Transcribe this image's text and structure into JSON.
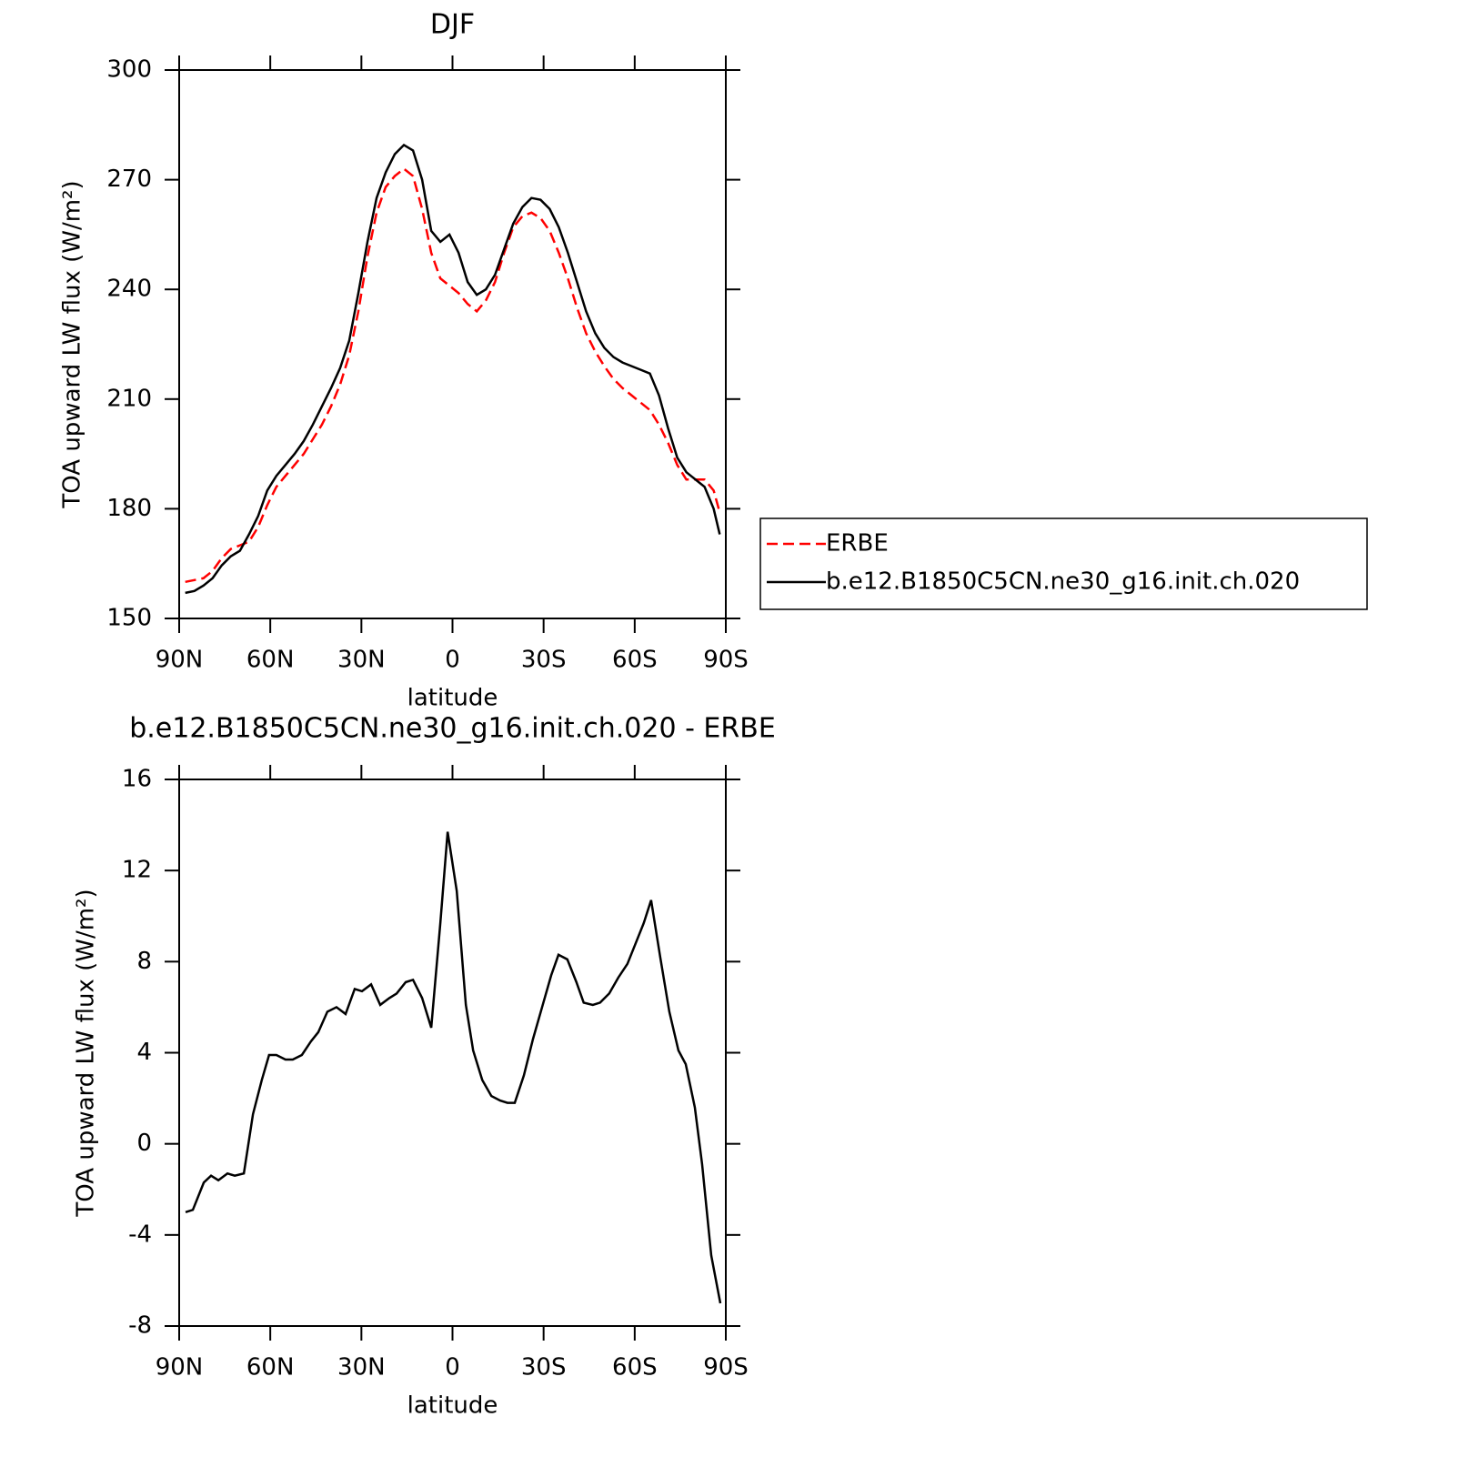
{
  "chart_data": [
    {
      "type": "line",
      "title": "DJF",
      "xlabel": "latitude",
      "ylabel": "TOA upward LW flux (W/m²)",
      "xlim": [
        90,
        -90
      ],
      "xticks": [
        {
          "value": 90,
          "label": "90N"
        },
        {
          "value": 60,
          "label": "60N"
        },
        {
          "value": 30,
          "label": "30N"
        },
        0,
        {
          "value": -30,
          "label": "30S"
        },
        {
          "value": -60,
          "label": "60S"
        },
        {
          "value": -90,
          "label": "90S"
        }
      ],
      "ylim": [
        150,
        300
      ],
      "yticks": [
        150,
        180,
        210,
        240,
        270,
        300
      ],
      "legend": "right",
      "x": [
        88,
        85,
        82,
        79,
        76,
        73,
        70,
        67,
        64,
        61,
        58,
        55,
        52,
        49,
        46,
        43,
        40,
        37,
        34,
        31,
        28,
        25,
        22,
        19,
        16,
        13,
        10,
        7,
        4,
        1,
        -2,
        -5,
        -8,
        -11,
        -14,
        -17,
        -20,
        -23,
        -26,
        -29,
        -32,
        -35,
        -38,
        -41,
        -44,
        -47,
        -50,
        -53,
        -56,
        -59,
        -62,
        -65,
        -68,
        -71,
        -74,
        -77,
        -80,
        -83,
        -86,
        -88
      ],
      "series": [
        {
          "name": "ERBE",
          "color": "#ff0000",
          "dash": true,
          "values": [
            160,
            160.5,
            161,
            163,
            166.5,
            169,
            170,
            171,
            175,
            181,
            186,
            189,
            192,
            195,
            199,
            203,
            208,
            214,
            222,
            234,
            249,
            261,
            268,
            271,
            273,
            271,
            262,
            250,
            243,
            241,
            239,
            236,
            234,
            237,
            242,
            250,
            257,
            260,
            261,
            259.5,
            256,
            250,
            243,
            235,
            228,
            223,
            219,
            215.5,
            213,
            211,
            209,
            207,
            203,
            198,
            192,
            188,
            188,
            188,
            185,
            179
          ]
        },
        {
          "name": "b.e12.B1850C5CN.ne30_g16.init.ch.020",
          "color": "#000000",
          "dash": false,
          "values": [
            157,
            157.5,
            159,
            161,
            164.5,
            167,
            168.5,
            173,
            178,
            185,
            189,
            192,
            195,
            198.5,
            203,
            208,
            213,
            218.5,
            226,
            239,
            253,
            265,
            272,
            277,
            279.5,
            278,
            270,
            256,
            253,
            255,
            250,
            242,
            238.5,
            240,
            244,
            251,
            258,
            262.5,
            265,
            264.5,
            262,
            257,
            250,
            242,
            234,
            228,
            224,
            221.5,
            220,
            219,
            218,
            217,
            211,
            202,
            194,
            190,
            188,
            186,
            180,
            173
          ]
        }
      ]
    },
    {
      "type": "line",
      "title": "b.e12.B1850C5CN.ne30_g16.init.ch.020 - ERBE",
      "xlabel": "latitude",
      "ylabel": "TOA upward LW flux (W/m²)",
      "xlim": [
        90,
        -90
      ],
      "xticks": [
        {
          "value": 90,
          "label": "90N"
        },
        {
          "value": 60,
          "label": "60N"
        },
        {
          "value": 30,
          "label": "30N"
        },
        0,
        {
          "value": -30,
          "label": "30S"
        },
        {
          "value": -60,
          "label": "60S"
        },
        {
          "value": -90,
          "label": "90S"
        }
      ],
      "ylim": [
        -8,
        16
      ],
      "yticks": [
        -8,
        -4,
        0,
        4,
        8,
        12,
        16
      ],
      "x": [
        87.9,
        85.5,
        81.9,
        79.5,
        77.1,
        74.1,
        71.7,
        68.7,
        65.7,
        62.8,
        60.4,
        58.0,
        55.0,
        52.6,
        49.6,
        46.6,
        44.2,
        41.2,
        38.2,
        35.2,
        32.2,
        29.8,
        26.8,
        23.8,
        20.8,
        18.4,
        15.4,
        13.0,
        10.0,
        7.0,
        4.0,
        1.6,
        -1.4,
        -4.4,
        -6.8,
        -9.8,
        -12.8,
        -15.7,
        -18.1,
        -20.5,
        -23.5,
        -26.5,
        -29.5,
        -32.5,
        -34.9,
        -37.8,
        -40.8,
        -43.2,
        -46.2,
        -48.6,
        -51.6,
        -54.6,
        -57.6,
        -60.0,
        -63.0,
        -65.4,
        -68.4,
        -71.4,
        -74.4,
        -76.8,
        -79.8,
        -82.2,
        -85.2,
        -88.2
      ],
      "series": [
        {
          "color": "#000000",
          "dash": false,
          "values": [
            -3,
            -2.9,
            -1.7,
            -1.4,
            -1.6,
            -1.3,
            -1.4,
            -1.3,
            1.3,
            2.8,
            3.9,
            3.9,
            3.7,
            3.7,
            3.9,
            4.5,
            4.9,
            5.8,
            6.0,
            5.7,
            6.8,
            6.7,
            7.0,
            6.1,
            6.4,
            6.6,
            7.1,
            7.2,
            6.4,
            5.1,
            9.7,
            13.7,
            11.1,
            6.1,
            4.1,
            2.8,
            2.1,
            1.9,
            1.8,
            1.8,
            3.0,
            4.6,
            6.0,
            7.4,
            8.3,
            8.1,
            7.1,
            6.2,
            6.1,
            6.2,
            6.6,
            7.3,
            7.9,
            8.7,
            9.7,
            10.7,
            8.2,
            5.8,
            4.1,
            3.5,
            1.6,
            -0.9,
            -4.9,
            -7.0
          ]
        }
      ]
    }
  ]
}
